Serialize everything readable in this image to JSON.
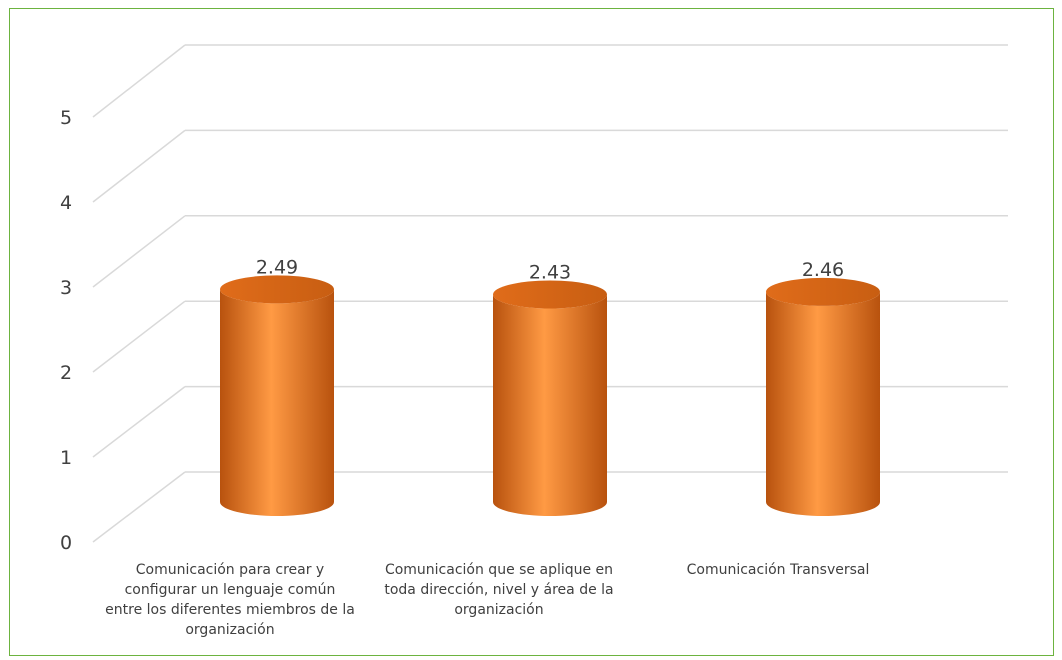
{
  "chart_data": {
    "type": "bar",
    "style": "3d-cylinder",
    "categories": [
      "Comunicación para crear y configurar un lenguaje común entre los diferentes miembros de la organización",
      "Comunicación que se aplique en toda dirección, nivel y área de la organización",
      "Comunicación Transversal"
    ],
    "values": [
      2.49,
      2.43,
      2.46
    ],
    "data_labels": [
      "2.49",
      "2.43",
      "2.46"
    ],
    "y_ticks": [
      "0",
      "1",
      "2",
      "3",
      "4",
      "5"
    ],
    "ylim": [
      0,
      5
    ],
    "grid": true,
    "legend": "none",
    "colors": {
      "bar": "#f07b24",
      "bar_dark": "#b8520e",
      "bar_light": "#ff9a44",
      "top": "#d96a1c",
      "grid": "#d9d9d9",
      "border": "#6cb33f",
      "text": "#404040"
    }
  }
}
